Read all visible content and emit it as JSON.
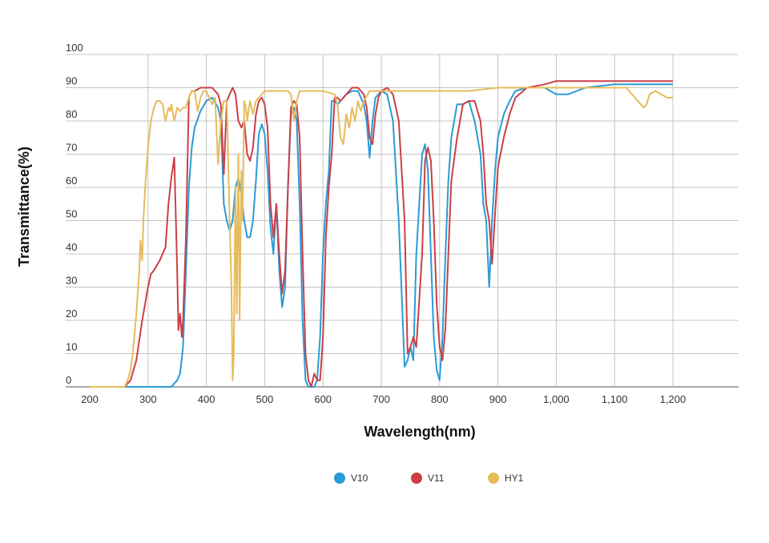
{
  "chart_data": {
    "type": "line",
    "title": "",
    "xlabel": "Wavelength(nm)",
    "ylabel": "Transmittance(%)",
    "xlim": [
      200,
      1200
    ],
    "ylim": [
      0,
      100
    ],
    "x_ticks": [
      "200",
      "300",
      "400",
      "500",
      "600",
      "700",
      "800",
      "900",
      "1,000",
      "1,100",
      "1,200"
    ],
    "y_ticks": [
      "0",
      "10",
      "20",
      "30",
      "40",
      "50",
      "60",
      "70",
      "80",
      "90",
      "100"
    ],
    "grid": true,
    "legend_position": "bottom",
    "series": [
      {
        "name": "V10",
        "color": "#2a9bd6",
        "x": [
          200,
          340,
          350,
          355,
          360,
          365,
          370,
          375,
          380,
          390,
          400,
          410,
          420,
          425,
          430,
          435,
          440,
          445,
          450,
          455,
          460,
          465,
          470,
          475,
          480,
          485,
          490,
          495,
          500,
          505,
          510,
          515,
          520,
          525,
          530,
          535,
          540,
          545,
          550,
          555,
          560,
          565,
          570,
          575,
          580,
          585,
          590,
          595,
          600,
          605,
          610,
          615,
          620,
          625,
          630,
          640,
          650,
          660,
          670,
          675,
          680,
          685,
          690,
          695,
          700,
          710,
          720,
          730,
          740,
          745,
          750,
          755,
          760,
          770,
          775,
          780,
          785,
          790,
          795,
          800,
          805,
          810,
          815,
          820,
          830,
          840,
          850,
          860,
          870,
          875,
          880,
          885,
          890,
          895,
          900,
          910,
          920,
          930,
          950,
          980,
          1000,
          1020,
          1050,
          1100,
          1150,
          1200
        ],
        "y": [
          0,
          0,
          2,
          4,
          12,
          35,
          60,
          72,
          78,
          83,
          86,
          87,
          84,
          80,
          55,
          50,
          47,
          50,
          60,
          63,
          58,
          50,
          45,
          45,
          50,
          62,
          76,
          79,
          76,
          65,
          48,
          40,
          55,
          35,
          24,
          30,
          60,
          82,
          84,
          80,
          55,
          20,
          2,
          0,
          0,
          0,
          2,
          15,
          40,
          55,
          65,
          86,
          86,
          85,
          86,
          88,
          89,
          89,
          85,
          80,
          69,
          80,
          87,
          88,
          89,
          88,
          80,
          50,
          6,
          8,
          12,
          8,
          40,
          70,
          73,
          65,
          40,
          15,
          5,
          2,
          15,
          40,
          62,
          75,
          85,
          85,
          86,
          80,
          70,
          55,
          50,
          30,
          50,
          65,
          75,
          82,
          86,
          89,
          90,
          90,
          88,
          88,
          90,
          91,
          91,
          91
        ]
      },
      {
        "name": "V11",
        "color": "#cc3f46",
        "x": [
          200,
          260,
          270,
          280,
          290,
          300,
          305,
          310,
          320,
          330,
          335,
          340,
          345,
          350,
          352,
          355,
          358,
          360,
          365,
          370,
          375,
          380,
          390,
          400,
          410,
          420,
          425,
          430,
          435,
          440,
          445,
          450,
          455,
          460,
          465,
          470,
          475,
          480,
          485,
          490,
          495,
          500,
          505,
          510,
          515,
          520,
          525,
          530,
          535,
          540,
          545,
          550,
          555,
          560,
          565,
          570,
          575,
          580,
          585,
          590,
          595,
          600,
          605,
          610,
          615,
          620,
          625,
          630,
          640,
          650,
          660,
          670,
          675,
          680,
          685,
          690,
          695,
          700,
          710,
          720,
          730,
          740,
          745,
          750,
          755,
          760,
          770,
          775,
          780,
          785,
          790,
          795,
          800,
          805,
          810,
          815,
          820,
          830,
          840,
          850,
          860,
          870,
          875,
          880,
          885,
          890,
          895,
          900,
          910,
          920,
          930,
          950,
          980,
          1000,
          1020,
          1050,
          1100,
          1150,
          1200
        ],
        "y": [
          0,
          0,
          2,
          8,
          20,
          30,
          34,
          35,
          38,
          42,
          55,
          63,
          69,
          35,
          17,
          22,
          15,
          20,
          45,
          87,
          89,
          89,
          90,
          90,
          90,
          88,
          85,
          64,
          86,
          88,
          90,
          88,
          80,
          78,
          80,
          70,
          68,
          72,
          82,
          86,
          87,
          85,
          78,
          55,
          45,
          55,
          40,
          28,
          35,
          60,
          84,
          86,
          85,
          75,
          40,
          10,
          2,
          0,
          4,
          2,
          2,
          15,
          45,
          60,
          70,
          87,
          87,
          86,
          88,
          90,
          90,
          88,
          84,
          75,
          73,
          82,
          87,
          89,
          90,
          88,
          80,
          50,
          10,
          12,
          15,
          12,
          40,
          68,
          72,
          68,
          50,
          25,
          12,
          8,
          18,
          40,
          62,
          75,
          85,
          86,
          86,
          80,
          70,
          55,
          50,
          37,
          52,
          66,
          75,
          82,
          87,
          90,
          91,
          92,
          92,
          92,
          92,
          92,
          92
        ]
      },
      {
        "name": "HY1",
        "color": "#e6bb5a",
        "x": [
          200,
          260,
          265,
          270,
          275,
          280,
          285,
          287,
          290,
          292,
          295,
          300,
          305,
          310,
          315,
          320,
          325,
          330,
          335,
          338,
          340,
          342,
          345,
          350,
          355,
          360,
          365,
          370,
          375,
          380,
          385,
          390,
          395,
          400,
          405,
          410,
          415,
          420,
          425,
          430,
          435,
          440,
          443,
          445,
          447,
          450,
          452,
          455,
          457,
          460,
          462,
          465,
          468,
          470,
          475,
          480,
          485,
          490,
          495,
          500,
          520,
          540,
          545,
          550,
          555,
          560,
          570,
          600,
          620,
          625,
          630,
          635,
          640,
          645,
          650,
          655,
          660,
          665,
          670,
          680,
          700,
          750,
          800,
          850,
          900,
          950,
          1000,
          1050,
          1100,
          1120,
          1130,
          1140,
          1150,
          1155,
          1160,
          1170,
          1180,
          1190,
          1200
        ],
        "y": [
          0,
          0,
          2,
          5,
          12,
          22,
          35,
          44,
          38,
          50,
          60,
          72,
          80,
          84,
          86,
          86,
          85,
          80,
          84,
          83,
          85,
          83,
          80,
          84,
          83,
          84,
          84,
          87,
          89,
          89,
          83,
          87,
          89,
          89,
          87,
          85,
          87,
          67,
          80,
          86,
          86,
          50,
          30,
          2,
          10,
          60,
          22,
          70,
          20,
          65,
          50,
          86,
          84,
          80,
          86,
          82,
          86,
          87,
          88,
          89,
          89,
          89,
          88,
          80,
          86,
          89,
          89,
          89,
          88,
          85,
          75,
          73,
          82,
          78,
          84,
          80,
          86,
          83,
          86,
          89,
          89,
          89,
          89,
          89,
          90,
          90,
          90,
          90,
          90,
          90,
          88,
          86,
          84,
          85,
          88,
          89,
          88,
          87,
          87
        ]
      }
    ]
  }
}
